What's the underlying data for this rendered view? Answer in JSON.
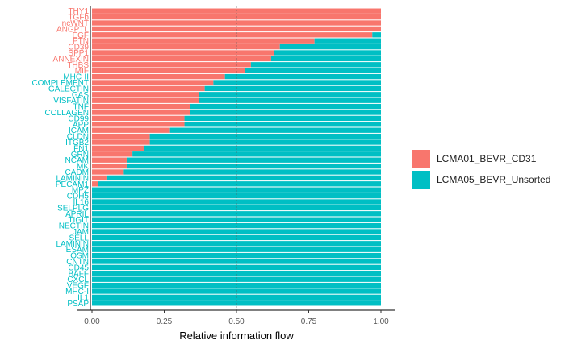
{
  "chart_data": {
    "type": "bar",
    "orientation": "horizontal",
    "stacked": true,
    "xlabel": "Relative information flow",
    "ylabel": "",
    "xlim": [
      0,
      1
    ],
    "xticks": [
      0,
      0.25,
      0.5,
      0.75,
      1
    ],
    "xtick_labels": [
      "0.00",
      "0.25",
      "0.50",
      "0.75",
      "1.00"
    ],
    "reference_line": 0.5,
    "grid": false,
    "legend_position": "right",
    "categories": [
      "THY1",
      "TGFb",
      "ncWNT",
      "ANGPTL",
      "EGF",
      "PTN",
      "CD39",
      "SPP1",
      "ANNEXIN",
      "THBS",
      "MIF",
      "MHC-II",
      "COMPLEMENT",
      "GALECTIN",
      "GAS",
      "VISFATIN",
      "TNF",
      "COLLAGEN",
      "CD99",
      "APP",
      "ICAM",
      "CLDN",
      "ITGB2",
      "FN1",
      "GRN",
      "NCAM",
      "MK",
      "CADM",
      "LAMININ",
      "PECAM1",
      "MPZ",
      "CDH5",
      "IL16",
      "SELPLG",
      "APRIL",
      "TIGIT",
      "NECTIN",
      "JAM",
      "SELL",
      "LAMININ",
      "ESAM",
      "OSM",
      "CNTN",
      "CD45",
      "BAFF",
      "CXCL",
      "VEGF",
      "MHC-I",
      "IL1",
      "PSAP"
    ],
    "series": [
      {
        "name": "LCMA01_BEVR_CD31",
        "color": "#F8766D",
        "values": [
          1,
          1,
          1,
          1,
          0.97,
          0.77,
          0.65,
          0.63,
          0.62,
          0.55,
          0.53,
          0.46,
          0.42,
          0.39,
          0.37,
          0.37,
          0.34,
          0.34,
          0.32,
          0.32,
          0.27,
          0.2,
          0.2,
          0.18,
          0.14,
          0.12,
          0.12,
          0.11,
          0.05,
          0.02,
          0,
          0,
          0,
          0,
          0,
          0,
          0,
          0,
          0,
          0,
          0,
          0,
          0,
          0,
          0,
          0,
          0,
          0,
          0,
          0
        ]
      },
      {
        "name": "LCMA05_BEVR_Unsorted",
        "color": "#00BFC4",
        "values": [
          0,
          0,
          0,
          0,
          0.03,
          0.23,
          0.35,
          0.37,
          0.38,
          0.45,
          0.47,
          0.54,
          0.58,
          0.61,
          0.63,
          0.63,
          0.66,
          0.66,
          0.68,
          0.68,
          0.73,
          0.8,
          0.8,
          0.82,
          0.86,
          0.88,
          0.88,
          0.89,
          0.95,
          0.98,
          1,
          1,
          1,
          1,
          1,
          1,
          1,
          1,
          1,
          1,
          1,
          1,
          1,
          1,
          1,
          1,
          1,
          1,
          1,
          1
        ]
      }
    ]
  }
}
